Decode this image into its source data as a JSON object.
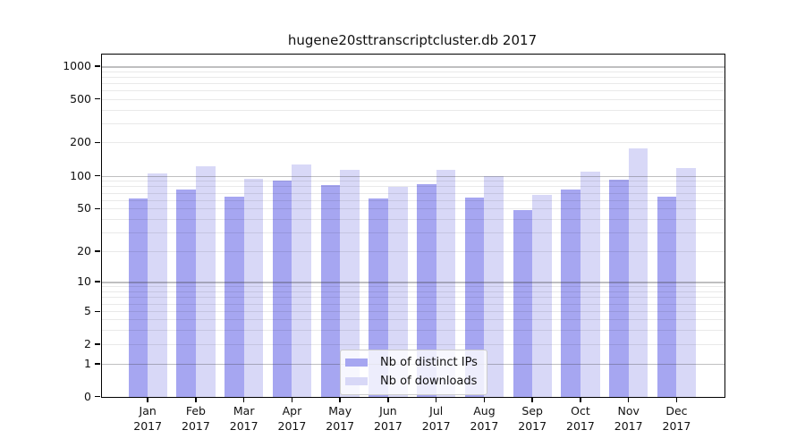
{
  "title": "hugene20sttranscriptcluster.db 2017",
  "chart_data": {
    "type": "bar",
    "title": "hugene20sttranscriptcluster.db 2017",
    "categories": [
      "Jan",
      "Feb",
      "Mar",
      "Apr",
      "May",
      "Jun",
      "Jul",
      "Aug",
      "Sep",
      "Oct",
      "Nov",
      "Dec"
    ],
    "year": "2017",
    "series": [
      {
        "name": "Nb of distinct IPs",
        "color": "#a6a6f1",
        "values": [
          62,
          76,
          65,
          92,
          83,
          62,
          85,
          64,
          49,
          75,
          93,
          65
        ]
      },
      {
        "name": "Nb of downloads",
        "color": "#d8d8f7",
        "values": [
          106,
          122,
          94,
          127,
          115,
          80,
          115,
          100,
          67,
          110,
          180,
          118
        ]
      }
    ],
    "xlabel": "",
    "ylabel": "",
    "y_axis": {
      "scale": "symlog",
      "ticks": [
        0,
        1,
        2,
        5,
        10,
        20,
        50,
        100,
        200,
        500,
        1000
      ],
      "range_top": 1300
    },
    "grid": true,
    "legend_position": "inside-bottom-center"
  },
  "legend": {
    "items": [
      {
        "label": "Nb of distinct IPs",
        "color": "#a6a6f1"
      },
      {
        "label": "Nb of downloads",
        "color": "#d8d8f7"
      }
    ]
  }
}
